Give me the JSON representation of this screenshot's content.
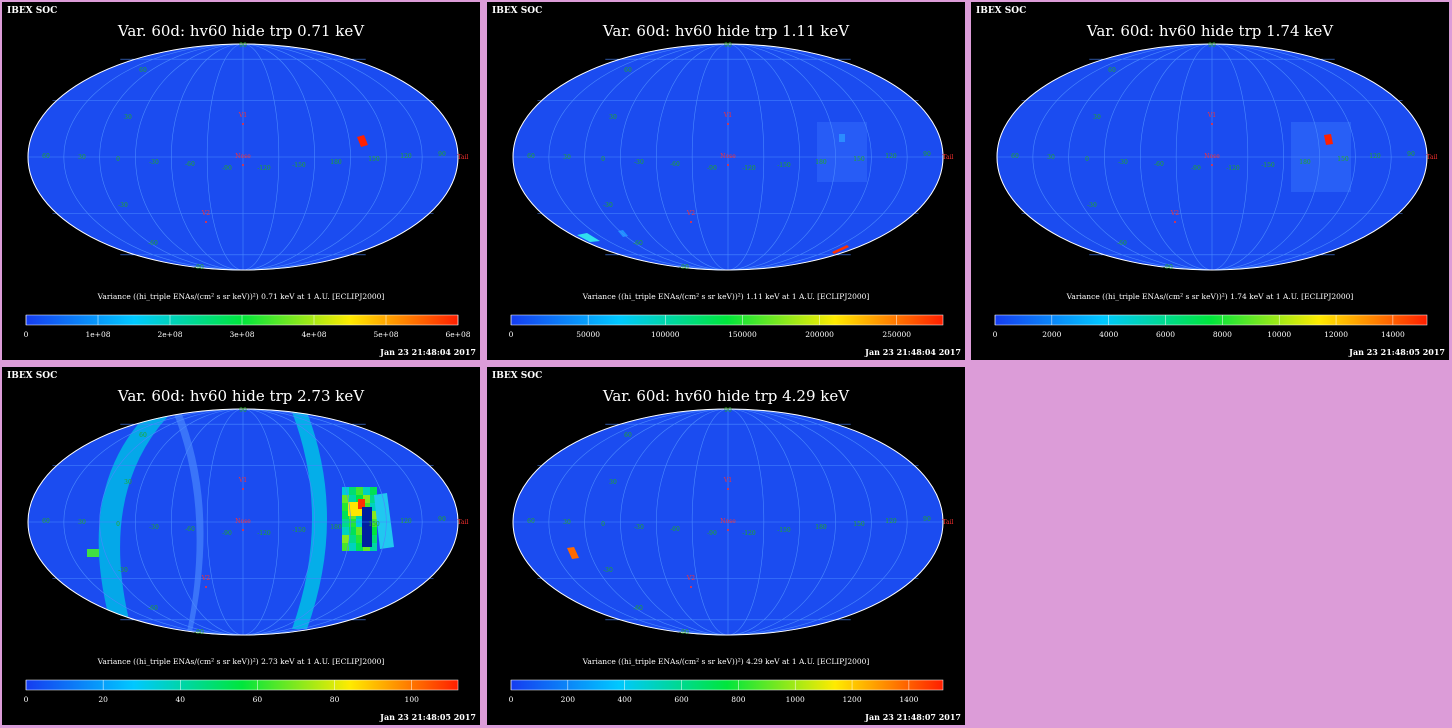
{
  "window": {
    "background": "#dc9cd8"
  },
  "colors": {
    "map_base": "#1b4cf0",
    "grid": "#4a88ff",
    "outline": "#ffffff",
    "lat_label": "#22aa22",
    "marker": "#ff3030"
  },
  "panels": [
    {
      "corner": "IBEX SOC",
      "title": "Var. 60d: hv60 hide trp 0.71 keV",
      "cbar_label": "Variance ((hi_triple ENAs/(cm² s sr keV))²) 0.71 keV at 1 A.U. [ECLIPJ2000]",
      "ticks": [
        "0",
        "1e+08",
        "2e+08",
        "3e+08",
        "4e+08",
        "5e+08",
        "6e+08"
      ],
      "timestamp": "Jan 23 21:48:04 2017",
      "pattern": "p071"
    },
    {
      "corner": "IBEX SOC",
      "title": "Var. 60d: hv60 hide trp 1.11 keV",
      "cbar_label": "Variance ((hi_triple ENAs/(cm² s sr keV))²) 1.11 keV at 1 A.U. [ECLIPJ2000]",
      "ticks": [
        "0",
        "50000",
        "100000",
        "150000",
        "200000",
        "250000"
      ],
      "timestamp": "Jan 23 21:48:04 2017",
      "pattern": "p111"
    },
    {
      "corner": "IBEX SOC",
      "title": "Var. 60d: hv60 hide trp 1.74 keV",
      "cbar_label": "Variance ((hi_triple ENAs/(cm² s sr keV))²) 1.74 keV at 1 A.U. [ECLIPJ2000]",
      "ticks": [
        "0",
        "2000",
        "4000",
        "6000",
        "8000",
        "10000",
        "12000",
        "14000"
      ],
      "timestamp": "Jan 23 21:48:05 2017",
      "pattern": "p174"
    },
    {
      "corner": "IBEX SOC",
      "title": "Var. 60d: hv60 hide trp 2.73 keV",
      "cbar_label": "Variance ((hi_triple ENAs/(cm² s sr keV))²) 2.73 keV at 1 A.U. [ECLIPJ2000]",
      "ticks": [
        "0",
        "20",
        "40",
        "60",
        "80",
        "100"
      ],
      "timestamp": "Jan 23 21:48:05 2017",
      "pattern": "p273"
    },
    {
      "corner": "IBEX SOC",
      "title": "Var. 60d: hv60 hide trp 4.29 keV",
      "cbar_label": "Variance ((hi_triple ENAs/(cm² s sr keV))²) 4.29 keV at 1 A.U. [ECLIPJ2000]",
      "ticks": [
        "0",
        "200",
        "400",
        "600",
        "800",
        "1000",
        "1200",
        "1400"
      ],
      "timestamp": "Jan 23 21:48:07 2017",
      "pattern": "p429"
    }
  ],
  "map_labels": {
    "lat": [
      "90",
      "60",
      "30",
      "-30",
      "-60",
      "-90"
    ],
    "lon": [
      "60",
      "30",
      "0",
      "-30",
      "-60",
      "-90",
      "-120",
      "-150",
      "180",
      "150",
      "120",
      "90"
    ],
    "markers": [
      "V1",
      "Nose",
      "V2",
      "Tail"
    ]
  }
}
